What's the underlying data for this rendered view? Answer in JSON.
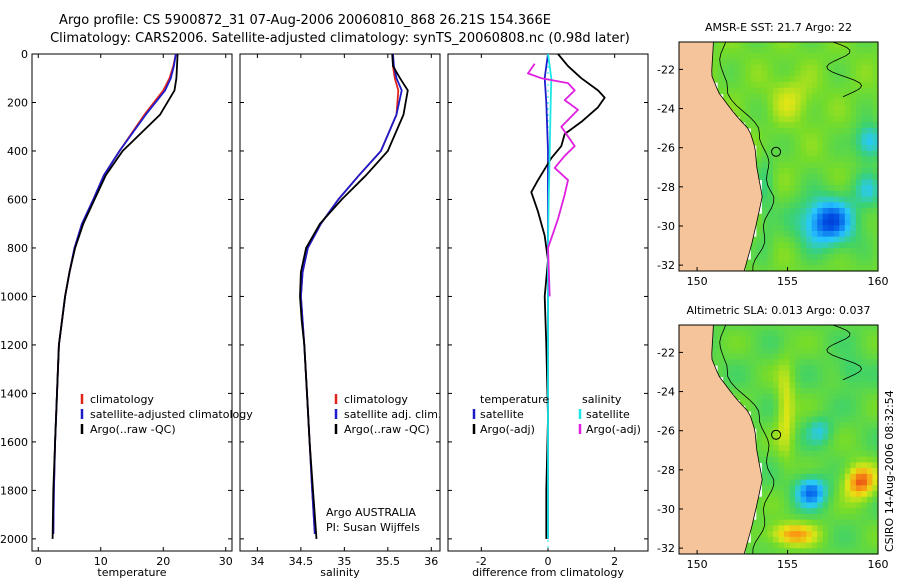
{
  "title": {
    "line1": "Argo profile: CS 5900872_31 07-Aug-2006 20060810_868 26.21S 154.366E",
    "line2": "Climatology: CARS2006. Satellite-adjusted climatology: synTS_20060808.nc (0.98d later)"
  },
  "footer": {
    "float_info_1": "Argo AUSTRALIA",
    "float_info_2": "PI: Susan Wijffels",
    "stamp": "CSIRO 14-Aug-2006 08:32:54"
  },
  "colors": {
    "climatology": "#e0241a",
    "satellite": "#1c1ccc",
    "argo": "#000000",
    "salinity_satellite": "#1ee6e6",
    "salinity_argo": "#e01ee0",
    "land": "#f6c49a"
  },
  "chart_data": [
    {
      "type": "line",
      "id": "temperature",
      "xlabel": "temperature",
      "xlim": [
        -1,
        31
      ],
      "ylim": [
        0,
        2050
      ],
      "y_reversed": true,
      "xticks": [
        "0",
        "10",
        "20",
        "30"
      ],
      "yticks": [
        "0",
        "200",
        "400",
        "600",
        "800",
        "1000",
        "1200",
        "1400",
        "1600",
        "1800",
        "2000"
      ],
      "legend": [
        "climatology",
        "satellite-adjusted climatology",
        "Argo(..raw -QC)"
      ],
      "series": [
        {
          "name": "climatology",
          "color": "#e0241a",
          "x": [
            22.0,
            21.6,
            21.0,
            20.0,
            17.0,
            13.0,
            10.5,
            8.8,
            7.0,
            5.8,
            5.0,
            4.3,
            3.8,
            3.3,
            3.0,
            2.7,
            2.5,
            2.4
          ],
          "y": [
            0,
            50,
            100,
            150,
            250,
            400,
            500,
            600,
            700,
            800,
            900,
            1000,
            1100,
            1200,
            1400,
            1600,
            1800,
            1980
          ]
        },
        {
          "name": "satellite-adjusted climatology",
          "color": "#1c1ccc",
          "x": [
            22.0,
            21.7,
            21.2,
            20.3,
            17.2,
            13.0,
            10.5,
            8.8,
            7.0,
            5.8,
            5.0,
            4.3,
            3.8,
            3.3,
            3.0,
            2.7,
            2.5,
            2.4
          ],
          "y": [
            0,
            50,
            100,
            150,
            250,
            400,
            500,
            600,
            700,
            800,
            900,
            1000,
            1100,
            1200,
            1400,
            1600,
            1800,
            1980
          ]
        },
        {
          "name": "Argo(..raw -QC)",
          "color": "#000000",
          "x": [
            22.3,
            22.2,
            22.1,
            21.8,
            19.5,
            13.5,
            10.8,
            9.0,
            7.2,
            5.9,
            5.0,
            4.3,
            3.8,
            3.3,
            3.0,
            2.7,
            2.4,
            2.3
          ],
          "y": [
            0,
            50,
            100,
            150,
            250,
            400,
            500,
            600,
            700,
            800,
            900,
            1000,
            1100,
            1200,
            1400,
            1600,
            1800,
            2000
          ]
        }
      ]
    },
    {
      "type": "line",
      "id": "salinity",
      "xlabel": "salinity",
      "xlim": [
        33.8,
        36.1
      ],
      "ylim": [
        0,
        2050
      ],
      "y_reversed": true,
      "xticks": [
        "34",
        "34.5",
        "35",
        "35.5",
        "36"
      ],
      "legend": [
        "climatology",
        "satellite adj. clim.",
        "Argo(..raw -QC)"
      ],
      "series": [
        {
          "name": "climatology",
          "color": "#e0241a",
          "x": [
            35.56,
            35.56,
            35.58,
            35.62,
            35.6,
            35.42,
            35.17,
            34.93,
            34.73,
            34.58,
            34.52,
            34.5,
            34.52,
            34.54,
            34.57,
            34.6,
            34.63,
            34.66
          ],
          "y": [
            0,
            50,
            100,
            150,
            250,
            400,
            500,
            600,
            700,
            800,
            900,
            1000,
            1100,
            1200,
            1400,
            1600,
            1800,
            1980
          ]
        },
        {
          "name": "satellite adj. clim.",
          "color": "#1c1ccc",
          "x": [
            35.56,
            35.57,
            35.6,
            35.66,
            35.6,
            35.42,
            35.17,
            34.93,
            34.73,
            34.58,
            34.52,
            34.5,
            34.52,
            34.54,
            34.57,
            34.6,
            34.63,
            34.66
          ],
          "y": [
            0,
            50,
            100,
            150,
            250,
            400,
            500,
            600,
            700,
            800,
            900,
            1000,
            1100,
            1200,
            1400,
            1600,
            1800,
            1980
          ]
        },
        {
          "name": "Argo(..raw -QC)",
          "color": "#000000",
          "x": [
            35.55,
            35.56,
            35.64,
            35.73,
            35.68,
            35.5,
            35.25,
            34.97,
            34.72,
            34.56,
            34.5,
            34.49,
            34.51,
            34.54,
            34.57,
            34.6,
            34.64,
            34.68
          ],
          "y": [
            0,
            50,
            100,
            150,
            250,
            400,
            500,
            600,
            700,
            800,
            900,
            1000,
            1100,
            1200,
            1400,
            1600,
            1800,
            2000
          ]
        }
      ]
    },
    {
      "type": "line",
      "id": "difference",
      "xlabel": "difference from climatology",
      "xlim": [
        -3,
        3
      ],
      "ylim": [
        0,
        2050
      ],
      "y_reversed": true,
      "xticks": [
        "-2",
        "0",
        "2"
      ],
      "legend_left_title": "temperature",
      "legend_right_title": "salinity",
      "legend": [
        "satellite",
        "Argo(-adj)",
        "satellite",
        "Argo(-adj)"
      ],
      "series": [
        {
          "name": "satellite",
          "group": "temperature",
          "color": "#1c1ccc",
          "x": [
            0.0,
            -0.05,
            -0.1,
            -0.05,
            0.0,
            0.0,
            0.0,
            0.0,
            0.0,
            0.0,
            0.0
          ],
          "y": [
            0,
            50,
            100,
            200,
            400,
            600,
            800,
            1000,
            1400,
            1800,
            2000
          ]
        },
        {
          "name": "Argo(-adj)",
          "group": "temperature",
          "color": "#000000",
          "x": [
            0.3,
            0.6,
            1.0,
            1.5,
            1.7,
            1.5,
            1.0,
            0.5,
            0.4,
            0.1,
            -0.3,
            -0.5,
            -0.3,
            -0.1,
            0.0,
            -0.1,
            -0.05,
            0.0,
            -0.05,
            -0.05
          ],
          "y": [
            0,
            50,
            100,
            150,
            180,
            220,
            280,
            330,
            380,
            430,
            520,
            570,
            650,
            750,
            850,
            1000,
            1200,
            1500,
            1800,
            2000
          ]
        },
        {
          "name": "satellite",
          "group": "salinity",
          "color": "#1ee6e6",
          "x": [
            0.0,
            0.05,
            0.1,
            0.08,
            0.05,
            0.02,
            0.0,
            0.0,
            0.0,
            0.0
          ],
          "y": [
            0,
            50,
            100,
            200,
            400,
            600,
            800,
            1200,
            1600,
            2000
          ]
        },
        {
          "name": "Argo(-adj)",
          "group": "salinity",
          "color": "#e01ee0",
          "x": [
            -0.4,
            -0.6,
            -0.2,
            0.6,
            0.8,
            0.5,
            0.9,
            0.4,
            0.8,
            0.5,
            0.2,
            0.6,
            0.5,
            0.3,
            0.0,
            0.05
          ],
          "y": [
            40,
            80,
            100,
            120,
            150,
            190,
            230,
            300,
            380,
            420,
            470,
            520,
            580,
            680,
            800,
            1000
          ]
        }
      ]
    },
    {
      "type": "heatmap",
      "id": "sst-map",
      "title": "AMSR-E SST: 21.7  Argo: 22",
      "xlim": [
        149,
        160
      ],
      "ylim": [
        -32.3,
        -20.6
      ],
      "xticks": [
        "150",
        "155",
        "160"
      ],
      "yticks": [
        "-22",
        "-24",
        "-26",
        "-28",
        "-30",
        "-32"
      ],
      "profile_location": {
        "lon": 154.366,
        "lat": -26.21
      }
    },
    {
      "type": "heatmap",
      "id": "sla-map",
      "title": "Altimetric SLA: 0.013  Argo: 0.037",
      "xlim": [
        149,
        160
      ],
      "ylim": [
        -32.3,
        -20.6
      ],
      "xticks": [
        "150",
        "155",
        "160"
      ],
      "yticks": [
        "-22",
        "-24",
        "-26",
        "-28",
        "-30",
        "-32"
      ],
      "profile_location": {
        "lon": 154.366,
        "lat": -26.21
      }
    }
  ]
}
